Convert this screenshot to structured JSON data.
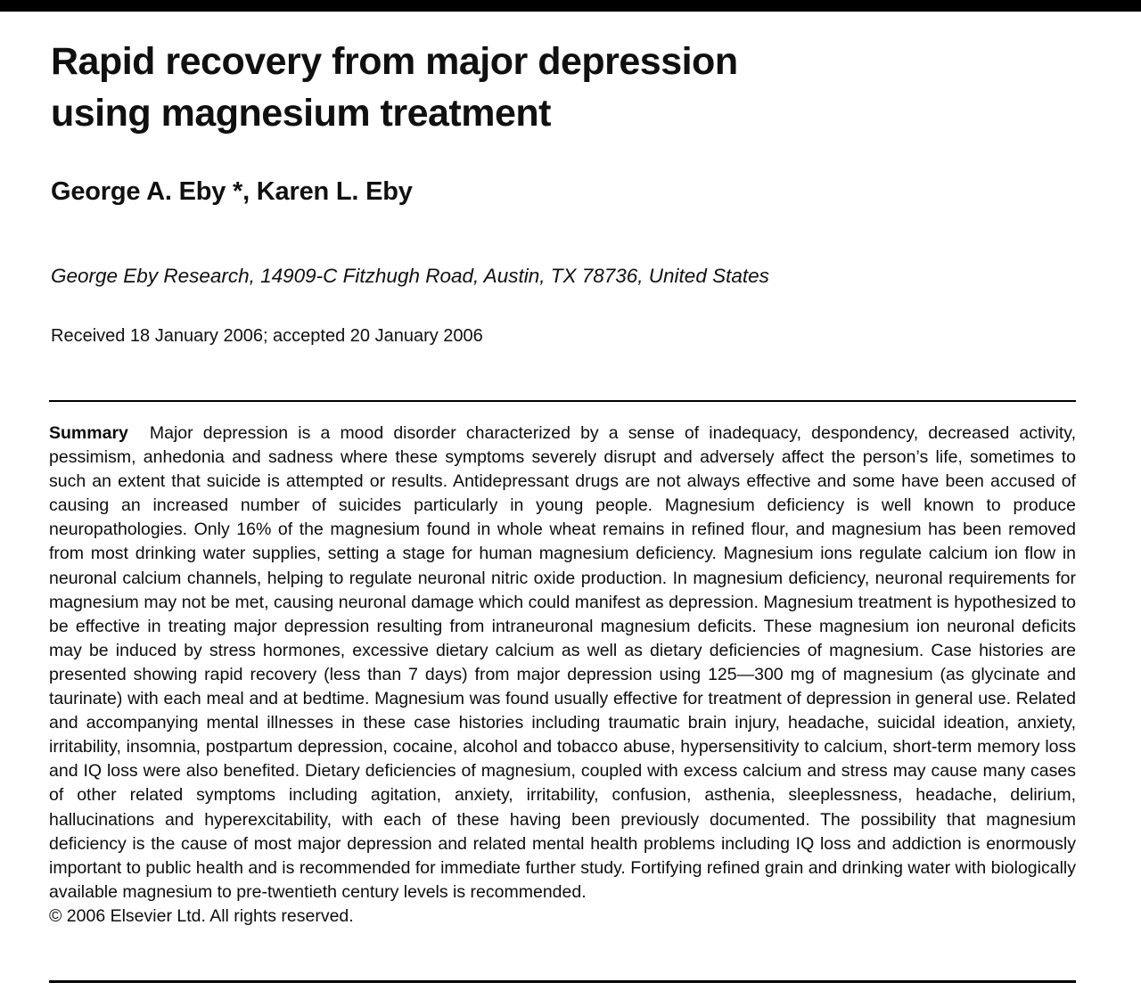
{
  "page": {
    "title_line1": "Rapid recovery from major depression",
    "title_line2": "using magnesium treatment",
    "authors": "George A. Eby *, Karen L. Eby",
    "affiliation": "George Eby Research, 14909-C Fitzhugh Road, Austin, TX 78736, United States",
    "received": "Received 18 January 2006; accepted 20 January 2006",
    "abstract": {
      "label": "Summary",
      "text": "Major depression is a mood disorder characterized by a sense of inadequacy, despondency, decreased activity, pessimism, anhedonia and sadness where these symptoms severely disrupt and adversely affect the person’s life, sometimes to such an extent that suicide is attempted or results. Antidepressant drugs are not always effective and some have been accused of causing an increased number of suicides particularly in young people. Magnesium deficiency is well known to produce neuropathologies. Only 16% of the magnesium found in whole wheat remains in refined flour, and magnesium has been removed from most drinking water supplies, setting a stage for human magnesium deficiency. Magnesium ions regulate calcium ion flow in neuronal calcium channels, helping to regulate neuronal nitric oxide production. In magnesium deficiency, neuronal requirements for magnesium may not be met, causing neuronal damage which could manifest as depression. Magnesium treatment is hypothesized to be effective in treating major depression resulting from intraneuronal magnesium deficits. These magnesium ion neuronal deficits may be induced by stress hormones, excessive dietary calcium as well as dietary deficiencies of magnesium. Case histories are presented showing rapid recovery (less than 7 days) from major depression using 125—300 mg of magnesium (as glycinate and taurinate) with each meal and at bedtime. Magnesium was found usually effective for treatment of depression in general use. Related and accompanying mental illnesses in these case histories including traumatic brain injury, headache, suicidal ideation, anxiety, irritability, insomnia, postpartum depression, cocaine, alcohol and tobacco abuse, hypersensitivity to calcium, short-term memory loss and IQ loss were also benefited. Dietary deficiencies of magnesium, coupled with excess calcium and stress may cause many cases of other related symptoms including agitation, anxiety, irritability, confusion, asthenia, sleeplessness, headache, delirium, hallucinations and hyperexcitability, with each of these having been previously documented. The possibility that magnesium deficiency is the cause of most major depression and related mental health problems including IQ loss and addiction is enormously important to public health and is recommended for immediate further study. Fortifying refined grain and drinking water with biologically available magnesium to pre-twentieth century levels is recommended.",
      "copyright": "© 2006 Elsevier Ltd. All rights reserved."
    },
    "colors": {
      "background": "#ffffff",
      "text": "#101010",
      "rule": "#000000",
      "top_bar": "#000000"
    }
  }
}
